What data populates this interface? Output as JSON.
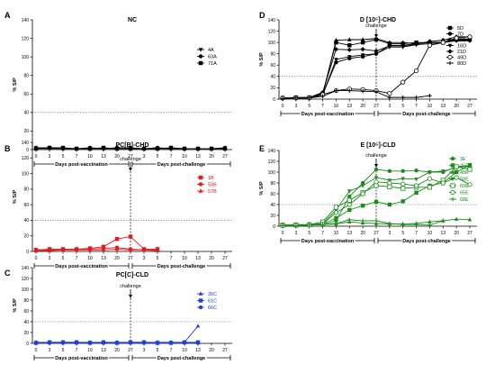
{
  "figure": {
    "ylabel": "% S/P",
    "yticks": [
      0,
      20,
      40,
      60,
      80,
      100,
      120,
      140
    ]
  },
  "chart_data": [
    {
      "panel_letter": "A",
      "title": "NC",
      "type": "line",
      "color": "#000000",
      "x": [
        "0",
        "3",
        "5",
        "7",
        "10",
        "13",
        "20",
        "27",
        "3",
        "5",
        "7",
        "10",
        "13",
        "20",
        "27"
      ],
      "period_labels": [
        "Days post-vaccination",
        "Days post-challenge"
      ],
      "challenge_label": "",
      "ylabel": "% S/P",
      "ylim": [
        0,
        140
      ],
      "threshold": 40,
      "legend_position": "right",
      "series": [
        {
          "name": "4A",
          "marker": "tri-down",
          "values": [
            1,
            1,
            1,
            1,
            1,
            1,
            1,
            1,
            1,
            1,
            1,
            1,
            1,
            1,
            1
          ]
        },
        {
          "name": "63A",
          "marker": "circle",
          "values": [
            2,
            2,
            1,
            1,
            2,
            1,
            2,
            2,
            1,
            2,
            1,
            1,
            1,
            1,
            2
          ]
        },
        {
          "name": "71A",
          "marker": "square",
          "values": [
            1,
            2,
            2,
            1,
            1,
            2,
            1,
            1,
            1,
            1,
            2,
            1,
            1,
            1,
            1
          ]
        }
      ]
    },
    {
      "panel_letter": "B",
      "title": "PC[B]-CHD",
      "type": "line",
      "color": "#e31a1c",
      "x": [
        "0",
        "3",
        "5",
        "7",
        "10",
        "13",
        "20",
        "27",
        "3",
        "5",
        "7",
        "10",
        "13",
        "20",
        "27"
      ],
      "period_labels": [
        "Days post-vaccination",
        "Days post-challenge"
      ],
      "challenge_label": "challenge",
      "ylabel": "% S/P",
      "ylim": [
        0,
        140
      ],
      "threshold": 40,
      "legend_position": "right",
      "series": [
        {
          "name": "1B",
          "marker": "square",
          "values": [
            2,
            3,
            3,
            3,
            4,
            6,
            16,
            19,
            3,
            3,
            null,
            null,
            null,
            null,
            null
          ]
        },
        {
          "name": "53B",
          "marker": "circle",
          "values": [
            1,
            2,
            2,
            2,
            3,
            4,
            5,
            3,
            2,
            2,
            null,
            null,
            null,
            null,
            null
          ]
        },
        {
          "name": "57B",
          "marker": "tri-up",
          "values": [
            1,
            1,
            2,
            2,
            2,
            2,
            3,
            2,
            2,
            1,
            null,
            null,
            null,
            null,
            null
          ]
        }
      ]
    },
    {
      "panel_letter": "C",
      "title": "PC[C]-CLD",
      "type": "line",
      "color": "#1f3fe0",
      "x": [
        "0",
        "3",
        "5",
        "7",
        "10",
        "13",
        "20",
        "27",
        "3",
        "5",
        "7",
        "10",
        "13",
        "20",
        "27"
      ],
      "period_labels": [
        "Days post-vaccination",
        "Days post-challenge"
      ],
      "challenge_label": "challenge",
      "ylabel": "% S/P",
      "ylim": [
        0,
        140
      ],
      "threshold": 40,
      "legend_position": "right",
      "series": [
        {
          "name": "36C",
          "marker": "tri-up",
          "values": [
            2,
            2,
            2,
            2,
            2,
            2,
            2,
            2,
            2,
            2,
            2,
            2,
            32,
            null,
            null
          ]
        },
        {
          "name": "61C",
          "marker": "square",
          "values": [
            1,
            2,
            2,
            2,
            1,
            2,
            1,
            2,
            2,
            1,
            1,
            2,
            2,
            null,
            null
          ]
        },
        {
          "name": "66C",
          "marker": "circle",
          "values": [
            1,
            1,
            1,
            1,
            1,
            1,
            1,
            1,
            1,
            1,
            1,
            1,
            1,
            null,
            null
          ]
        }
      ]
    },
    {
      "panel_letter": "D",
      "title": "D [10⁵]-CHD",
      "type": "line",
      "color": "#000000",
      "x": [
        "0",
        "3",
        "5",
        "7",
        "10",
        "13",
        "20",
        "27",
        "3",
        "5",
        "7",
        "10",
        "13",
        "20",
        "27"
      ],
      "period_labels": [
        "Days post-vaccination",
        "Days post-challenge"
      ],
      "challenge_label": "challenge",
      "ylabel": "% S/P",
      "ylim": [
        0,
        140
      ],
      "threshold": 40,
      "legend_position": "top-right",
      "series": [
        {
          "name": "5D",
          "marker": "square",
          "values": [
            2,
            3,
            3,
            10,
            100,
            95,
            100,
            105,
            98,
            98,
            100,
            100,
            100,
            105,
            105
          ]
        },
        {
          "name": "7D",
          "marker": "circle",
          "values": [
            2,
            2,
            2,
            8,
            65,
            72,
            75,
            80,
            95,
            95,
            98,
            100,
            100,
            104,
            104
          ]
        },
        {
          "name": "15D",
          "marker": "tri-up",
          "values": [
            2,
            2,
            2,
            8,
            104,
            105,
            105,
            107,
            100,
            100,
            98,
            100,
            100,
            106,
            106
          ]
        },
        {
          "name": "16D",
          "marker": "tri-down",
          "values": [
            1,
            2,
            2,
            8,
            70,
            75,
            78,
            80,
            92,
            92,
            96,
            98,
            100,
            103,
            103
          ]
        },
        {
          "name": "21D",
          "marker": "diamond",
          "values": [
            2,
            2,
            3,
            12,
            88,
            87,
            88,
            85,
            94,
            94,
            97,
            102,
            104,
            110,
            110
          ]
        },
        {
          "name": "49D",
          "marker": "circle-open",
          "values": [
            2,
            2,
            2,
            8,
            15,
            18,
            17,
            15,
            10,
            30,
            50,
            95,
            100,
            108,
            110
          ]
        },
        {
          "name": "80D",
          "marker": "plus",
          "values": [
            1,
            2,
            2,
            5,
            15,
            15,
            14,
            13,
            3,
            3,
            3,
            6,
            null,
            null,
            null
          ]
        }
      ]
    },
    {
      "panel_letter": "E",
      "title": "E [10⁵]-CLD",
      "type": "line",
      "color": "#1a8c1a",
      "x": [
        "0",
        "3",
        "5",
        "7",
        "10",
        "13",
        "20",
        "27",
        "3",
        "5",
        "7",
        "10",
        "13",
        "20",
        "27"
      ],
      "period_labels": [
        "Days post-vaccination",
        "Days post-challenge"
      ],
      "challenge_label": "challenge",
      "ylabel": "% S/P",
      "ylim": [
        0,
        140
      ],
      "threshold": 40,
      "legend_position": "right",
      "series": [
        {
          "name": "3E",
          "marker": "circle",
          "values": [
            2,
            2,
            2,
            3,
            10,
            55,
            80,
            105,
            102,
            102,
            103,
            100,
            100,
            110,
            112
          ]
        },
        {
          "name": "45E",
          "marker": "square",
          "values": [
            2,
            3,
            3,
            4,
            15,
            30,
            38,
            45,
            40,
            46,
            62,
            75,
            80,
            100,
            113
          ]
        },
        {
          "name": "48E",
          "marker": "tri-up",
          "values": [
            1,
            2,
            2,
            3,
            4,
            8,
            6,
            5,
            4,
            4,
            5,
            8,
            10,
            13,
            12
          ]
        },
        {
          "name": "58E",
          "marker": "tri-down",
          "values": [
            2,
            2,
            3,
            5,
            30,
            65,
            75,
            90,
            85,
            88,
            87,
            100,
            102,
            108,
            112
          ]
        },
        {
          "name": "60E",
          "marker": "square-open",
          "values": [
            2,
            2,
            3,
            8,
            35,
            48,
            62,
            75,
            73,
            70,
            72,
            72,
            85,
            110,
            105
          ]
        },
        {
          "name": "65E",
          "marker": "circle-open",
          "values": [
            1,
            2,
            2,
            4,
            25,
            40,
            60,
            82,
            80,
            78,
            75,
            88,
            80,
            90,
            77
          ]
        },
        {
          "name": "68E",
          "marker": "plus",
          "values": [
            1,
            1,
            2,
            3,
            5,
            12,
            10,
            10,
            5,
            3,
            3,
            2,
            10,
            null,
            null
          ]
        }
      ]
    }
  ]
}
